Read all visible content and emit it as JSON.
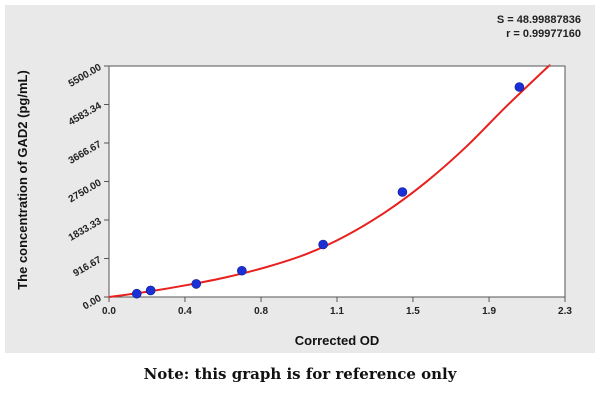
{
  "stats": {
    "s_line": "S = 48.99887836",
    "r_line": "r = 0.99977160"
  },
  "note": "Note: this graph is for reference only",
  "colors": {
    "curve": "#e8201e",
    "points": "#1a2fd6",
    "background": "#e9e9e9"
  },
  "chart_data": {
    "type": "scatter",
    "xlabel": "Corrected OD",
    "ylabel": "The concentration of GAD2 (pg/mL)",
    "xlim": [
      0.0,
      2.3
    ],
    "ylim": [
      0.0,
      5500.0
    ],
    "x_ticks": [
      "0.0",
      "0.4",
      "0.8",
      "1.1",
      "1.5",
      "1.9",
      "2.3"
    ],
    "x_tick_values": [
      0.0,
      0.383,
      0.767,
      1.15,
      1.533,
      1.917,
      2.3
    ],
    "y_ticks": [
      "0.00",
      "916.67",
      "1833.33",
      "2750.00",
      "3666.67",
      "4583.34",
      "5500.00"
    ],
    "y_tick_values": [
      0,
      916.67,
      1833.33,
      2750,
      3666.67,
      4583.34,
      5500
    ],
    "grid": false,
    "series": [
      {
        "kind": "points",
        "x": [
          0.14,
          0.21,
          0.44,
          0.67,
          1.08,
          1.48,
          2.07
        ],
        "y": [
          78,
          156,
          312,
          625,
          1250,
          2500,
          5000
        ]
      },
      {
        "kind": "fit_curve",
        "x": [
          0.0,
          0.2,
          0.4,
          0.6,
          0.8,
          1.0,
          1.2,
          1.4,
          1.6,
          1.8,
          2.0,
          2.2,
          2.22
        ],
        "y": [
          0,
          130,
          290,
          480,
          720,
          1030,
          1470,
          2040,
          2740,
          3570,
          4520,
          5420,
          5500
        ]
      }
    ]
  }
}
